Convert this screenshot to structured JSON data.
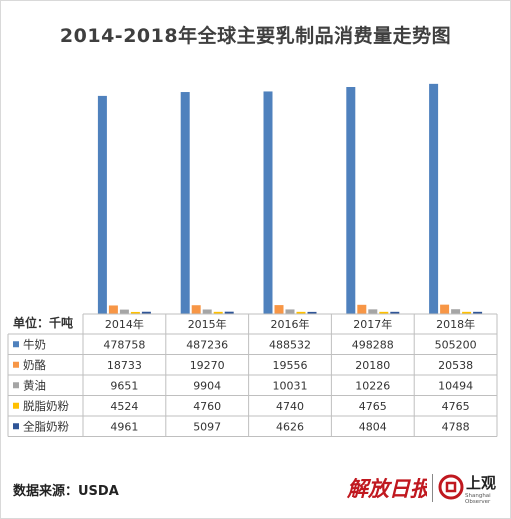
{
  "header": {
    "title": "2014-2018年全球主要乳制品消费量走势图"
  },
  "table": {
    "unit_label": "单位：千吨"
  },
  "footer": {
    "source": "数据来源：USDA",
    "logo_left": "解放日报",
    "logo_right": "上观",
    "logo_right_sub": "Shanghai Observer"
  },
  "chart_data": {
    "type": "bar",
    "title": "2014-2018年全球主要乳制品消费量走势图",
    "categories": [
      "2014年",
      "2015年",
      "2016年",
      "2017年",
      "2018年"
    ],
    "series": [
      {
        "name": "牛奶",
        "color": "#4f81bd",
        "values": [
          478758,
          487236,
          488532,
          498288,
          505200
        ]
      },
      {
        "name": "奶酪",
        "color": "#f79646",
        "values": [
          18733,
          19270,
          19556,
          20180,
          20538
        ]
      },
      {
        "name": "黄油",
        "color": "#a5a5a5",
        "values": [
          9651,
          9904,
          10031,
          10226,
          10494
        ]
      },
      {
        "name": "脱脂奶粉",
        "color": "#ffc000",
        "values": [
          4524,
          4760,
          4740,
          4765,
          4765
        ]
      },
      {
        "name": "全脂奶粉",
        "color": "#2f5597",
        "values": [
          4961,
          5097,
          4626,
          4804,
          4788
        ]
      }
    ],
    "ylim": [
      0,
      540000
    ],
    "grid": false,
    "legend": "table-rows"
  }
}
